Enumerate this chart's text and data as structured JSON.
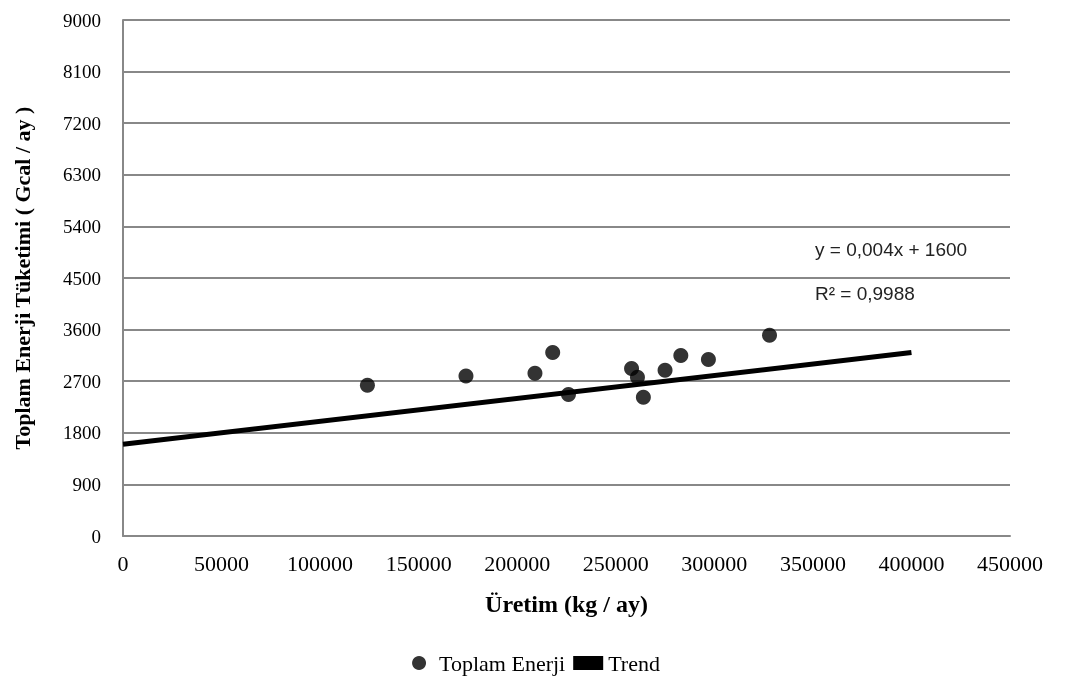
{
  "chart_data": {
    "type": "scatter",
    "xlabel": "Üretim (kg / ay)",
    "ylabel": "Toplam Enerji Tüketimi ( Gcal / ay )",
    "xlim": [
      0,
      450000
    ],
    "xticks": [
      0,
      50000,
      100000,
      150000,
      200000,
      250000,
      300000,
      350000,
      400000,
      450000
    ],
    "ylim": [
      0,
      9000
    ],
    "yticks": [
      0,
      900,
      1800,
      2700,
      3600,
      4500,
      5400,
      6300,
      7200,
      8100,
      9000
    ],
    "grid": "y",
    "legend": "bottom",
    "marker": "circle",
    "annotations": [
      "y = 0,004x + 1600",
      "R² = 0,9988"
    ],
    "series": [
      {
        "name": "Toplam Enerji",
        "color": "#000000",
        "x": [
          124000,
          174000,
          209000,
          218000,
          226000,
          258000,
          261000,
          264000,
          275000,
          283000,
          297000,
          328000
        ],
        "values": [
          2630,
          2790,
          2840,
          3200,
          2470,
          2920,
          2770,
          2420,
          2890,
          3150,
          3080,
          3500
        ]
      },
      {
        "name": "Trend",
        "type": "line",
        "color": "#000000",
        "marker": "none",
        "x": [
          0,
          400000
        ],
        "values": [
          1600,
          3200
        ]
      }
    ]
  }
}
